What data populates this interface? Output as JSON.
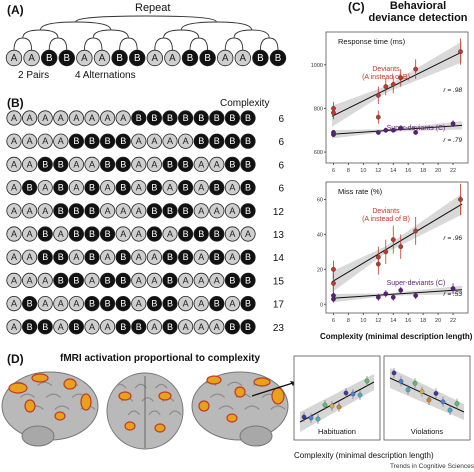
{
  "panel_a": {
    "label": "(A)",
    "title": "Repeat",
    "sequence": [
      "A",
      "A",
      "B",
      "B",
      "A",
      "A",
      "B",
      "B",
      "A",
      "A",
      "B",
      "B",
      "A",
      "A",
      "B",
      "B"
    ],
    "note_pairs": "2 Pairs",
    "note_alternations": "4 Alternations"
  },
  "panel_b": {
    "label": "(B)",
    "header": "Complexity",
    "rows": [
      {
        "seq": "AAAAAAAABBBBBBBB",
        "complexity": "6"
      },
      {
        "seq": "AAAABBBBAAAABBBB",
        "complexity": "6"
      },
      {
        "seq": "AABBAABBAABBAABB",
        "complexity": "6"
      },
      {
        "seq": "ABABABABABABABAB",
        "complexity": "6"
      },
      {
        "seq": "AAABBBAAABBBAAAB",
        "complexity": "12"
      },
      {
        "seq": "AABABBBAABABBBAA",
        "complexity": "13"
      },
      {
        "seq": "AABBABABAABBABAB",
        "complexity": "14"
      },
      {
        "seq": "AAABBABBAABAAABB",
        "complexity": "15"
      },
      {
        "seq": "ABAAABBBABBAABAB",
        "complexity": "17"
      },
      {
        "seq": "ABBABAABBABAAABB",
        "complexity": "23"
      }
    ]
  },
  "panel_c": {
    "label": "(C)",
    "title_line1": "Behavioral",
    "title_line2": "deviance detection",
    "xlabel": "Complexity (minimal description length)",
    "colors": {
      "deviant": "#c0392b",
      "superdeviant": "#5b1f7a",
      "fit": "#111111",
      "band": "#cfcfcf"
    }
  },
  "panel_d": {
    "label": "(D)",
    "title": "fMRI activation proportional to complexity",
    "xlabel": "Complexity (minimal description length)",
    "inset_left_label": "Habituation",
    "inset_right_label": "Violations"
  },
  "footer": "Trends in Cognitive Sciences",
  "chart_data": [
    {
      "type": "scatter",
      "title": "Response time (ms)",
      "xlim": [
        5,
        24
      ],
      "ylim": [
        550,
        1150
      ],
      "x_ticks": [
        6,
        8,
        10,
        12,
        14,
        16,
        18,
        20,
        22
      ],
      "y_ticks": [
        600,
        800,
        1000
      ],
      "series": [
        {
          "name": "Deviants (A instead of B)",
          "color": "#c0392b",
          "x": [
            6,
            6,
            12,
            12,
            13,
            14,
            15,
            17,
            23
          ],
          "y": [
            780,
            800,
            860,
            760,
            900,
            910,
            940,
            980,
            1060
          ],
          "err": [
            30,
            30,
            40,
            30,
            40,
            40,
            40,
            45,
            60
          ]
        },
        {
          "name": "Super-deviants (C)",
          "color": "#5b1f7a",
          "x": [
            6,
            6,
            12,
            13,
            14,
            15,
            17,
            22
          ],
          "y": [
            680,
            690,
            690,
            700,
            700,
            710,
            690,
            730
          ],
          "err": [
            10,
            10,
            10,
            12,
            10,
            12,
            10,
            15
          ]
        }
      ],
      "annotations": [
        {
          "text": "r = .98",
          "series": "Deviants (A instead of B)"
        },
        {
          "text": "r = .79",
          "series": "Super-deviants (C)"
        }
      ]
    },
    {
      "type": "scatter",
      "title": "Miss rate (%)",
      "xlim": [
        5,
        24
      ],
      "ylim": [
        -5,
        70
      ],
      "x_ticks": [
        6,
        8,
        10,
        12,
        14,
        16,
        18,
        20,
        22
      ],
      "y_ticks": [
        0,
        20,
        40,
        60
      ],
      "series": [
        {
          "name": "Deviants (A instead of B)",
          "color": "#c0392b",
          "x": [
            6,
            6,
            12,
            12,
            13,
            14,
            15,
            17,
            23
          ],
          "y": [
            12,
            20,
            23,
            27,
            30,
            37,
            33,
            42,
            60
          ],
          "err": [
            5,
            5,
            6,
            6,
            7,
            8,
            7,
            8,
            9
          ]
        },
        {
          "name": "Super-deviants (C)",
          "color": "#5b1f7a",
          "x": [
            6,
            6,
            12,
            13,
            14,
            15,
            17,
            22
          ],
          "y": [
            3,
            5,
            4,
            6,
            4,
            8,
            5,
            9
          ],
          "err": [
            2,
            2,
            2,
            2,
            2,
            2,
            2,
            3
          ]
        }
      ],
      "annotations": [
        {
          "text": "r = .96",
          "series": "Deviants (A instead of B)"
        },
        {
          "text": "r = .53",
          "series": "Super-deviants (C)"
        }
      ]
    }
  ]
}
